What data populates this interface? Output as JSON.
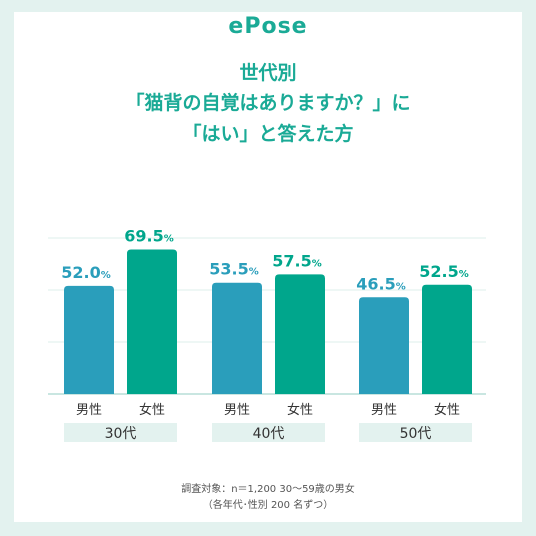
{
  "brand": "ePose",
  "title_lines": [
    "世代別",
    "「猫背の自覚はありますか？」に",
    "「はい」と答えた方"
  ],
  "footnote_lines": [
    "調査対象：n＝1,200 30〜59歳の男女",
    "（各年代･性別 200 名ずつ）"
  ],
  "colors": {
    "male": "#2a9ebb",
    "female": "#00a68c",
    "accent": "#1aaa96",
    "group_band": "#e3f2ef",
    "frame": "#e3f2ef"
  },
  "chart_data": {
    "type": "bar",
    "categories": [
      "30代",
      "40代",
      "50代"
    ],
    "sublabels": [
      "男性",
      "女性"
    ],
    "unit": "%",
    "series": [
      {
        "name": "男性",
        "values": [
          52.0,
          53.5,
          46.5
        ]
      },
      {
        "name": "女性",
        "values": [
          69.5,
          57.5,
          52.5
        ]
      }
    ],
    "ylim": [
      0,
      75
    ],
    "title": "",
    "xlabel": "",
    "ylabel": ""
  }
}
